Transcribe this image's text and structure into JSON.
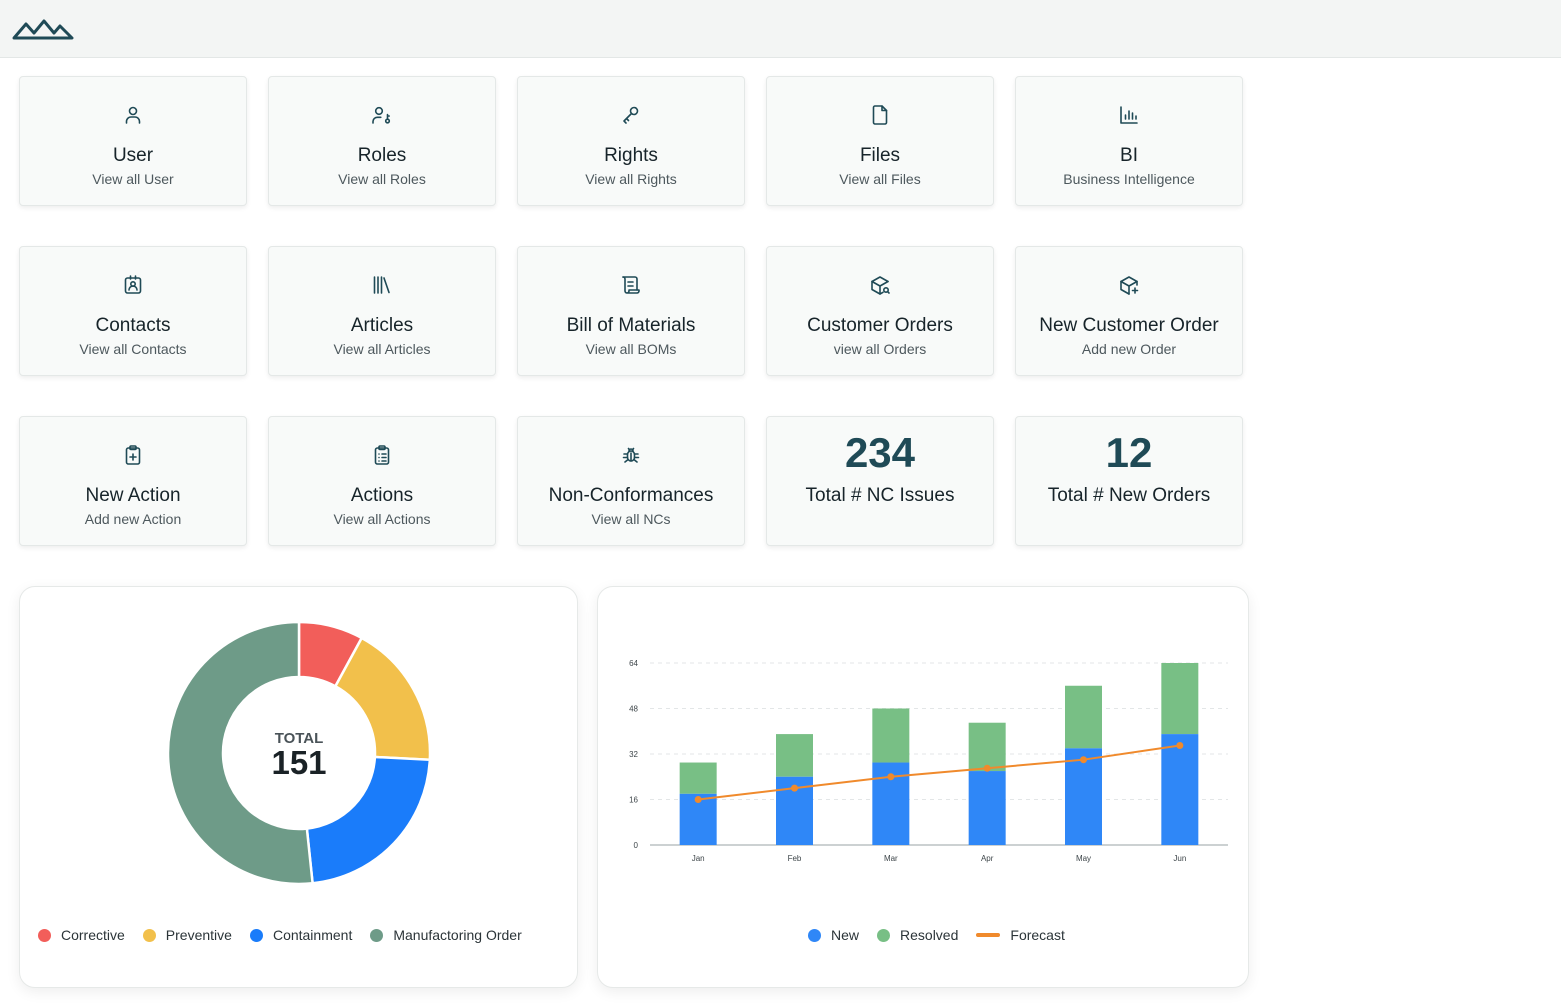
{
  "header": {
    "logo_icon": "mountains-logo"
  },
  "tiles": [
    {
      "icon": "user-icon",
      "title": "User",
      "subtitle": "View all User"
    },
    {
      "icon": "user-key-icon",
      "title": "Roles",
      "subtitle": "View all Roles"
    },
    {
      "icon": "key-icon",
      "title": "Rights",
      "subtitle": "View all Rights"
    },
    {
      "icon": "file-icon",
      "title": "Files",
      "subtitle": "View all Files"
    },
    {
      "icon": "bar-chart-icon",
      "title": "BI",
      "subtitle": "Business Intelligence"
    },
    {
      "icon": "contact-badge-icon",
      "title": "Contacts",
      "subtitle": "View all Contacts"
    },
    {
      "icon": "books-icon",
      "title": "Articles",
      "subtitle": "View all Articles"
    },
    {
      "icon": "scroll-icon",
      "title": "Bill of Materials",
      "subtitle": "View all BOMs"
    },
    {
      "icon": "package-search-icon",
      "title": "Customer Orders",
      "subtitle": "view all Orders"
    },
    {
      "icon": "package-plus-icon",
      "title": "New Customer Order",
      "subtitle": "Add new Order"
    },
    {
      "icon": "clipboard-plus-icon",
      "title": "New Action",
      "subtitle": "Add new Action"
    },
    {
      "icon": "clipboard-list-icon",
      "title": "Actions",
      "subtitle": "View all Actions"
    },
    {
      "icon": "bug-icon",
      "title": "Non-Conformances",
      "subtitle": "View all NCs"
    }
  ],
  "stats": [
    {
      "value": "234",
      "label": "Total # NC Issues"
    },
    {
      "value": "12",
      "label": "Total # New Orders"
    }
  ],
  "colors": {
    "corrective": "#f25e5a",
    "preventive": "#f2c04b",
    "containment": "#1a7cfa",
    "manufacturing": "#6e9b88",
    "new": "#2f87f7",
    "resolved": "#78bf85",
    "forecast": "#f08a2c"
  },
  "chart_data": [
    {
      "type": "pie",
      "center_label": "TOTAL",
      "center_value": "151",
      "categories": [
        "Corrective",
        "Preventive",
        "Containment",
        "Manufactoring Order"
      ],
      "values": [
        12,
        27,
        34,
        78
      ]
    },
    {
      "type": "bar",
      "stacked": true,
      "categories": [
        "Jan",
        "Feb",
        "Mar",
        "Apr",
        "May",
        "Jun"
      ],
      "yticks": [
        "0",
        "16",
        "32",
        "48",
        "64"
      ],
      "ylim": [
        0,
        64
      ],
      "grid": true,
      "legend_position": "bottom",
      "series": [
        {
          "name": "New",
          "type": "bar",
          "values": [
            18,
            24,
            29,
            26,
            34,
            39
          ]
        },
        {
          "name": "Resolved",
          "type": "bar",
          "values": [
            11,
            15,
            19,
            17,
            22,
            25
          ]
        },
        {
          "name": "Forecast",
          "type": "line",
          "values": [
            16,
            20,
            24,
            27,
            30,
            35
          ]
        }
      ]
    }
  ]
}
